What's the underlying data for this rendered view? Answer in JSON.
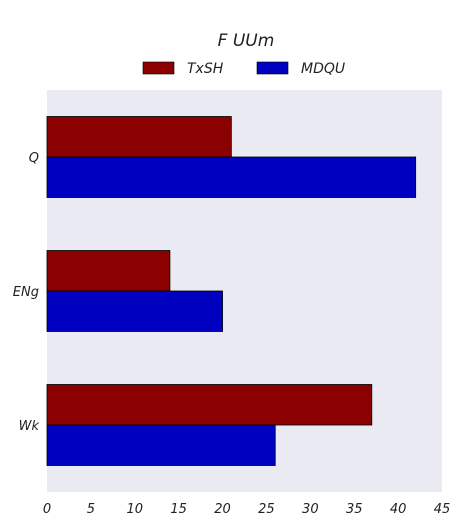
{
  "chart_data": {
    "type": "bar",
    "orientation": "horizontal",
    "title": "F UUm",
    "xlabel": "",
    "ylabel": "",
    "categories": [
      "Q",
      "ENg",
      "Wk"
    ],
    "series": [
      {
        "name": "TxSH",
        "values": [
          21,
          14,
          37
        ],
        "color": "#8b0000"
      },
      {
        "name": "MDQU",
        "values": [
          42,
          20,
          26
        ],
        "color": "#0000c0"
      }
    ],
    "xlim": [
      0,
      45
    ],
    "xticks": [
      "0",
      "5",
      "10",
      "15",
      "20",
      "25",
      "30",
      "35",
      "40",
      "45"
    ],
    "grid": false,
    "legend_position": "top",
    "plot_background": "#eaeaf2"
  }
}
